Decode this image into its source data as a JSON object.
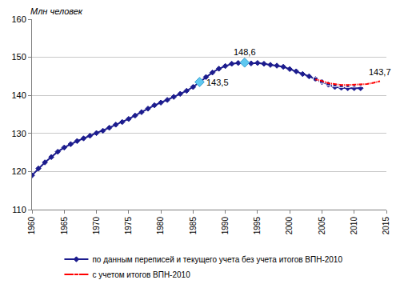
{
  "chart_data": {
    "type": "line",
    "y_label": "Млн человек",
    "xlim": [
      1960,
      2015
    ],
    "xticks": [
      1960,
      1965,
      1970,
      1975,
      1980,
      1985,
      1990,
      1995,
      2000,
      2005,
      2010,
      2015
    ],
    "ylim": [
      110,
      160
    ],
    "yticks": [
      110,
      120,
      130,
      140,
      150,
      160
    ],
    "grid": true,
    "legend": "bottom",
    "series": [
      {
        "name": "по данным переписей и текущего учета без учета итогов ВПН-2010",
        "color": "#1c1c8e",
        "marker": "diamond",
        "line_style": "solid",
        "x": [
          1960,
          1961,
          1962,
          1963,
          1964,
          1965,
          1966,
          1967,
          1968,
          1969,
          1970,
          1971,
          1972,
          1973,
          1974,
          1975,
          1976,
          1977,
          1978,
          1979,
          1980,
          1981,
          1982,
          1983,
          1984,
          1985,
          1986,
          1987,
          1988,
          1989,
          1990,
          1991,
          1992,
          1993,
          1994,
          1995,
          1996,
          1997,
          1998,
          1999,
          2000,
          2001,
          2002,
          2003,
          2004,
          2005,
          2006,
          2007,
          2008,
          2009,
          2010,
          2011
        ],
        "values": [
          119.0,
          120.8,
          122.4,
          123.8,
          125.2,
          126.3,
          127.2,
          128.0,
          128.7,
          129.4,
          130.1,
          130.7,
          131.5,
          132.3,
          133.0,
          133.8,
          134.7,
          135.6,
          136.5,
          137.4,
          138.1,
          138.8,
          139.6,
          140.4,
          141.2,
          142.2,
          143.5,
          144.8,
          146.0,
          147.0,
          147.7,
          148.3,
          148.5,
          148.6,
          148.4,
          148.5,
          148.3,
          148.0,
          147.8,
          147.5,
          146.9,
          146.3,
          145.6,
          145.0,
          144.3,
          143.5,
          142.8,
          142.2,
          142.0,
          141.9,
          141.9,
          141.9
        ]
      },
      {
        "name": "с учетом итогов ВПН-2010",
        "color": "#ff0000",
        "marker": "square-open",
        "line_style": "solid",
        "x": [
          2004,
          2005,
          2006,
          2007,
          2008,
          2009,
          2010,
          2011,
          2012,
          2013,
          2014
        ],
        "values": [
          144.2,
          143.8,
          143.2,
          142.9,
          142.7,
          142.7,
          142.8,
          142.9,
          143.0,
          143.3,
          143.7
        ]
      }
    ],
    "annotations": [
      {
        "x": 1986,
        "y": 143.5,
        "text": "143,5"
      },
      {
        "x": 1993,
        "y": 148.6,
        "text": "148,6"
      },
      {
        "x": 2014,
        "y": 143.7,
        "text": "143,7"
      }
    ]
  }
}
